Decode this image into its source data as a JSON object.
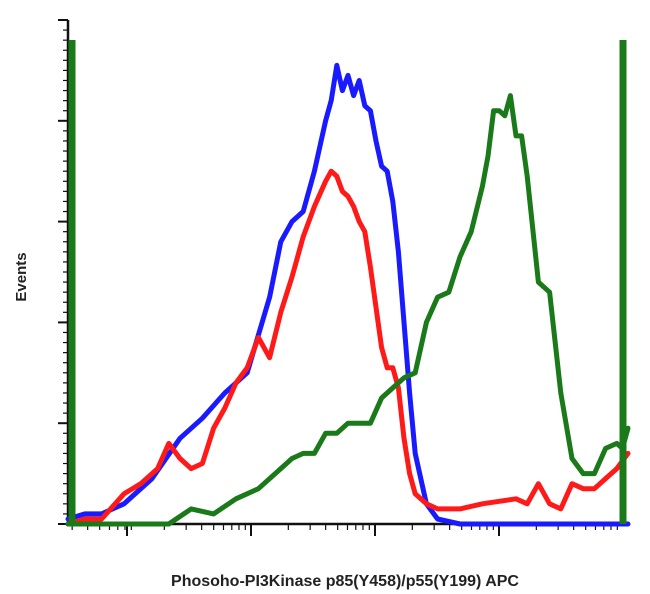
{
  "chart_data": {
    "type": "line",
    "title": "",
    "xlabel": "Phosoho-PI3Kinase p85(Y458)/p55(Y199) APC",
    "ylabel": "Events",
    "x_scale": "log",
    "xlim": [
      0,
      100
    ],
    "ylim": [
      0,
      100
    ],
    "grid": false,
    "legend": "none",
    "series": [
      {
        "color": "#1a1aff",
        "x": [
          0,
          3,
          6,
          10,
          15,
          20,
          24,
          28,
          32,
          36,
          38,
          40,
          42,
          44,
          46,
          47,
          48,
          49,
          50,
          51,
          52,
          53,
          54,
          55,
          56,
          57,
          58,
          59,
          60,
          61,
          62,
          64,
          66,
          70,
          74,
          80,
          90,
          100
        ],
        "y": [
          1,
          2,
          2,
          4,
          9,
          17,
          21,
          26,
          30,
          45,
          56,
          60,
          62,
          70,
          80,
          84,
          91,
          86,
          89,
          85,
          88,
          83,
          82,
          76,
          71,
          70,
          64,
          54,
          40,
          26,
          14,
          4,
          1,
          0,
          0,
          0,
          0,
          0
        ]
      },
      {
        "color": "#ff1a1a",
        "x": [
          0,
          3,
          6,
          10,
          13,
          16,
          18,
          20,
          22,
          24,
          26,
          28,
          30,
          32,
          34,
          36,
          38,
          40,
          42,
          44,
          46,
          47,
          48,
          49,
          50,
          51,
          52,
          53,
          54,
          55,
          56,
          57,
          58,
          59,
          60,
          61,
          62,
          64,
          66,
          70,
          74,
          80,
          82,
          84,
          86,
          88,
          90,
          92,
          94,
          96,
          98,
          100
        ],
        "y": [
          0,
          1,
          1,
          6,
          8,
          11,
          16,
          13,
          11,
          12,
          19,
          23,
          28,
          31,
          37,
          33,
          42,
          49,
          57,
          63,
          68,
          70,
          69,
          66,
          65,
          63,
          60,
          58,
          51,
          43,
          35,
          31,
          31,
          27,
          17,
          10,
          6,
          4,
          3,
          3,
          4,
          5,
          4,
          8,
          4,
          3,
          8,
          7,
          7,
          9,
          11,
          14
        ],
        "x_pos": [
          0,
          3,
          6,
          10,
          13,
          16,
          18,
          20,
          22,
          24,
          26,
          28,
          30,
          32,
          34,
          36,
          38,
          40,
          42,
          44,
          46,
          47,
          48,
          49,
          50,
          51,
          52,
          53,
          54,
          55,
          56,
          57,
          58,
          59,
          60,
          61,
          62,
          64,
          66,
          70,
          74,
          80,
          82,
          84,
          86,
          88,
          90,
          92,
          94,
          96,
          98,
          100
        ],
        "y_pos": [
          0,
          1,
          1,
          6,
          8,
          11,
          16,
          13,
          11,
          12,
          19,
          23,
          28,
          31,
          37,
          33,
          42,
          49,
          57,
          63,
          68,
          70,
          69,
          66,
          65,
          63,
          60,
          58,
          51,
          43,
          35,
          31,
          31,
          27,
          17,
          10,
          6,
          4,
          3,
          3,
          4,
          5,
          4,
          8,
          4,
          3,
          8,
          7,
          7,
          9,
          11,
          14
        ]
      },
      {
        "color": "#1a7a1a",
        "x": [
          0,
          5,
          10,
          14,
          18,
          22,
          26,
          30,
          34,
          38,
          40,
          42,
          44,
          46,
          48,
          50,
          52,
          54,
          56,
          58,
          60,
          62,
          64,
          66,
          68,
          70,
          72,
          74,
          75,
          76,
          77,
          78,
          79,
          80,
          81,
          82,
          84,
          86,
          88,
          90,
          92,
          94,
          96,
          98,
          99,
          100
        ],
        "y": [
          0,
          0,
          0,
          0,
          0,
          3,
          2,
          5,
          7,
          11,
          13,
          14,
          14,
          18,
          18,
          20,
          20,
          20,
          25,
          27,
          29,
          30,
          40,
          45,
          46,
          53,
          58,
          67,
          73,
          82,
          82,
          81,
          85,
          77,
          77,
          69,
          48,
          46,
          26,
          13,
          10,
          10,
          15,
          16,
          15,
          19
        ]
      }
    ]
  }
}
